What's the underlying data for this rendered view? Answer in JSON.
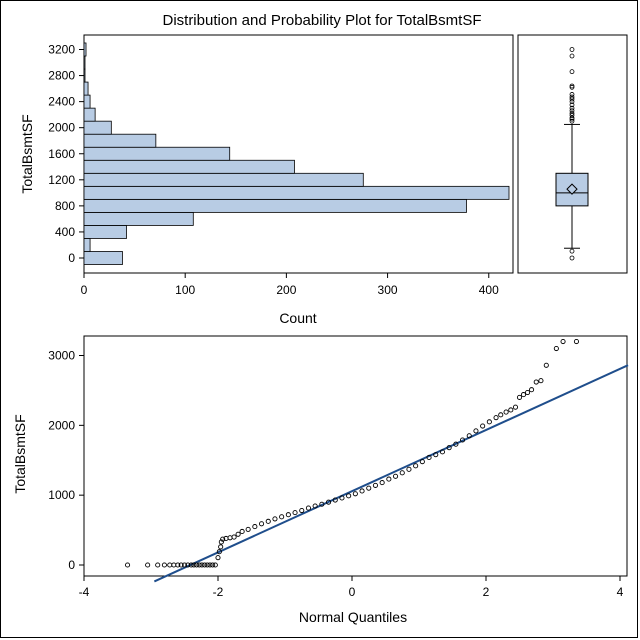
{
  "title": "Distribution and Probability Plot for TotalBsmtSF",
  "chart_data": [
    {
      "type": "bar",
      "orientation": "horizontal",
      "ylabel": "TotalBsmtSF",
      "xlabel": "Count",
      "ytick_labels": [
        "0",
        "400",
        "800",
        "1200",
        "1600",
        "2000",
        "2400",
        "2800",
        "3200"
      ],
      "ytick_values": [
        0,
        400,
        800,
        1200,
        1600,
        2000,
        2400,
        2800,
        3200
      ],
      "xtick_labels": [
        "0",
        "100",
        "200",
        "300",
        "400"
      ],
      "xtick_values": [
        0,
        100,
        200,
        300,
        400
      ],
      "xlim": [
        0,
        420
      ],
      "ylim": [
        -100,
        3300
      ],
      "bin_width": 200,
      "bin_centers": [
        0,
        200,
        400,
        600,
        800,
        1000,
        1200,
        1400,
        1600,
        1800,
        2000,
        2200,
        2400,
        2600,
        2800,
        3000,
        3200
      ],
      "values": [
        38,
        6,
        42,
        108,
        378,
        420,
        276,
        208,
        144,
        71,
        27,
        11,
        6,
        4,
        1,
        1,
        2
      ],
      "fill_color": "#b8cce4",
      "edge_color": "#000000"
    },
    {
      "type": "box",
      "orientation": "vertical",
      "ylim": [
        -100,
        3300
      ],
      "min_whisker": 150,
      "q1": 800,
      "median": 1000,
      "mean": 1057,
      "q3": 1300,
      "max_whisker": 2050,
      "outliers": [
        0,
        105,
        2100,
        2130,
        2150,
        2190,
        2220,
        2260,
        2300,
        2350,
        2400,
        2440,
        2470,
        2510,
        2620,
        2640,
        2860,
        3100,
        3200
      ],
      "fill_color": "#b8cce4"
    },
    {
      "type": "scatter",
      "title": "",
      "xlabel": "Normal Quantiles",
      "ylabel": "TotalBsmtSF",
      "xtick_labels": [
        "-4",
        "-2",
        "0",
        "2",
        "4"
      ],
      "xtick_values": [
        -4,
        -2,
        0,
        2,
        4
      ],
      "ytick_labels": [
        "0",
        "1000",
        "2000",
        "3000"
      ],
      "ytick_values": [
        0,
        1000,
        2000,
        3000
      ],
      "xlim": [
        -4.05,
        4.05
      ],
      "ylim": [
        -100,
        3300
      ],
      "reference_line": {
        "intercept": 1057,
        "slope": 438,
        "color": "#1f4e8c"
      },
      "points": [
        [
          -3.35,
          0
        ],
        [
          -3.05,
          0
        ],
        [
          -2.9,
          0
        ],
        [
          -2.8,
          0
        ],
        [
          -2.72,
          0
        ],
        [
          -2.66,
          0
        ],
        [
          -2.6,
          0
        ],
        [
          -2.55,
          0
        ],
        [
          -2.5,
          0
        ],
        [
          -2.45,
          0
        ],
        [
          -2.4,
          0
        ],
        [
          -2.36,
          0
        ],
        [
          -2.32,
          0
        ],
        [
          -2.28,
          0
        ],
        [
          -2.24,
          0
        ],
        [
          -2.2,
          0
        ],
        [
          -2.16,
          0
        ],
        [
          -2.12,
          0
        ],
        [
          -2.08,
          0
        ],
        [
          -2.04,
          0
        ],
        [
          -2.0,
          105
        ],
        [
          -1.98,
          190
        ],
        [
          -1.96,
          260
        ],
        [
          -1.95,
          330
        ],
        [
          -1.93,
          370
        ],
        [
          -1.88,
          380
        ],
        [
          -1.82,
          390
        ],
        [
          -1.76,
          400
        ],
        [
          -1.7,
          440
        ],
        [
          -1.64,
          480
        ],
        [
          -1.55,
          510
        ],
        [
          -1.45,
          550
        ],
        [
          -1.35,
          590
        ],
        [
          -1.25,
          625
        ],
        [
          -1.15,
          660
        ],
        [
          -1.05,
          690
        ],
        [
          -0.95,
          720
        ],
        [
          -0.85,
          750
        ],
        [
          -0.75,
          780
        ],
        [
          -0.65,
          815
        ],
        [
          -0.55,
          845
        ],
        [
          -0.45,
          870
        ],
        [
          -0.35,
          900
        ],
        [
          -0.25,
          930
        ],
        [
          -0.15,
          960
        ],
        [
          -0.05,
          990
        ],
        [
          0.05,
          1020
        ],
        [
          0.15,
          1060
        ],
        [
          0.25,
          1100
        ],
        [
          0.35,
          1140
        ],
        [
          0.45,
          1180
        ],
        [
          0.55,
          1230
        ],
        [
          0.65,
          1270
        ],
        [
          0.75,
          1320
        ],
        [
          0.85,
          1370
        ],
        [
          0.95,
          1420
        ],
        [
          1.05,
          1480
        ],
        [
          1.15,
          1540
        ],
        [
          1.25,
          1580
        ],
        [
          1.35,
          1620
        ],
        [
          1.45,
          1680
        ],
        [
          1.55,
          1730
        ],
        [
          1.65,
          1790
        ],
        [
          1.75,
          1850
        ],
        [
          1.85,
          1920
        ],
        [
          1.95,
          1990
        ],
        [
          2.05,
          2050
        ],
        [
          2.15,
          2110
        ],
        [
          2.22,
          2150
        ],
        [
          2.3,
          2190
        ],
        [
          2.37,
          2220
        ],
        [
          2.44,
          2260
        ],
        [
          2.5,
          2400
        ],
        [
          2.56,
          2440
        ],
        [
          2.62,
          2470
        ],
        [
          2.68,
          2510
        ],
        [
          2.75,
          2620
        ],
        [
          2.82,
          2640
        ],
        [
          2.9,
          2860
        ],
        [
          3.05,
          3100
        ],
        [
          3.15,
          3200
        ],
        [
          3.35,
          3200
        ]
      ],
      "marker_color": "#000000"
    }
  ]
}
